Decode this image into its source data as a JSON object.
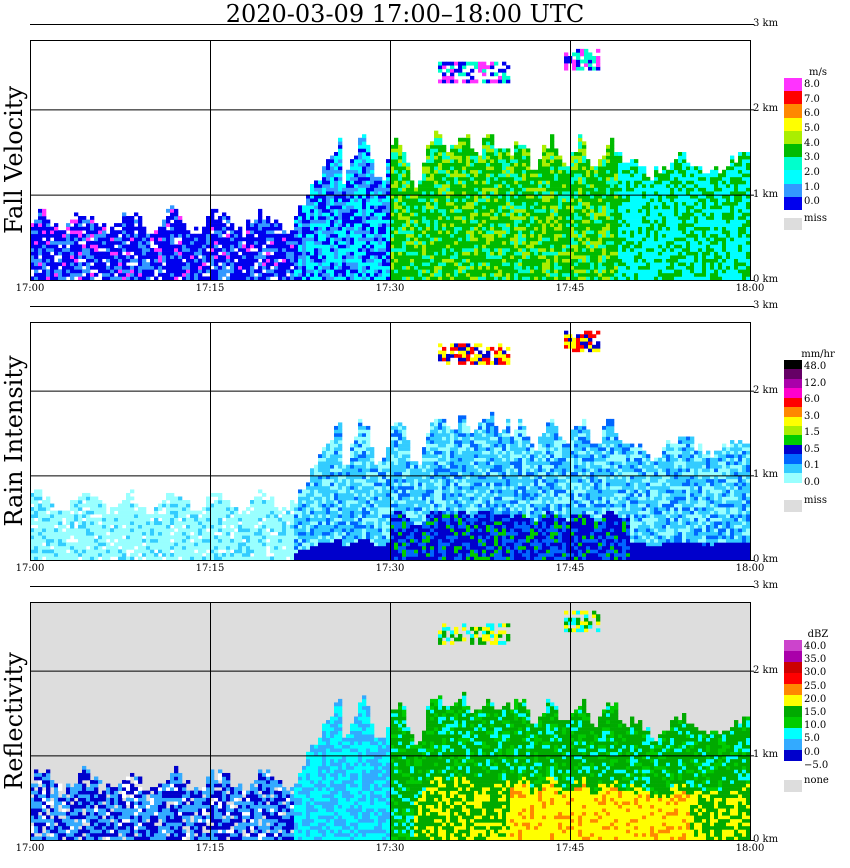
{
  "title": "2020-03-09   17:00–18:00 UTC",
  "x_ticks": [
    "17:00",
    "17:15",
    "17:30",
    "17:45",
    "18:00"
  ],
  "y_ticks": [
    "0 km",
    "1 km",
    "2 km",
    "3 km"
  ],
  "chart_data": [
    {
      "type": "heatmap",
      "title": "Fall Velocity",
      "ylabel": "Fall Velocity",
      "x_range": [
        "17:00",
        "18:00"
      ],
      "ylim": [
        0,
        3
      ],
      "y_unit": "km",
      "grid": true,
      "legend": {
        "position": "right",
        "unit": "m/s",
        "labels": [
          "8.0",
          "7.0",
          "6.0",
          "5.0",
          "4.0",
          "3.0",
          "2.0",
          "1.0",
          "0.0"
        ],
        "colors": [
          "#ff33ff",
          "#ff0000",
          "#ff8800",
          "#ffff00",
          "#aaee00",
          "#00bb00",
          "#00ffcc",
          "#00ffff",
          "#3399ff",
          "#0000ee"
        ],
        "missing_label": "miss",
        "missing_color": "#dddddd"
      }
    },
    {
      "type": "heatmap",
      "title": "Rain Intensity",
      "ylabel": "Rain Intensity",
      "x_range": [
        "17:00",
        "18:00"
      ],
      "ylim": [
        0,
        3
      ],
      "y_unit": "km",
      "grid": true,
      "legend": {
        "position": "right",
        "unit": "mm/hr",
        "labels": [
          "48.0",
          "12.0",
          "6.0",
          "3.0",
          "1.5",
          "0.5",
          "0.1",
          "0.0"
        ],
        "colors": [
          "#000000",
          "#660066",
          "#aa00aa",
          "#ff00cc",
          "#ff0000",
          "#ff8800",
          "#ffff00",
          "#aaee00",
          "#00cc00",
          "#0000cc",
          "#0066ff",
          "#33ccff",
          "#99ffff",
          "#ffffff"
        ],
        "missing_label": "miss",
        "missing_color": "#dddddd"
      }
    },
    {
      "type": "heatmap",
      "title": "Reflectivity",
      "ylabel": "Reflectivity",
      "x_range": [
        "17:00",
        "18:00"
      ],
      "ylim": [
        0,
        3
      ],
      "y_unit": "km",
      "grid": true,
      "legend": {
        "position": "right",
        "unit": "dBZ",
        "labels": [
          "40.0",
          "35.0",
          "30.0",
          "25.0",
          "20.0",
          "15.0",
          "10.0",
          "5.0",
          "0.0",
          "−5.0"
        ],
        "colors": [
          "#cc44cc",
          "#aa00aa",
          "#cc0000",
          "#ff0000",
          "#ff8800",
          "#ffff00",
          "#00aa00",
          "#00cc00",
          "#00ffff",
          "#33aaff",
          "#0000cc",
          "#ffffff"
        ],
        "missing_label": "none",
        "missing_color": "#dddddd"
      }
    }
  ]
}
